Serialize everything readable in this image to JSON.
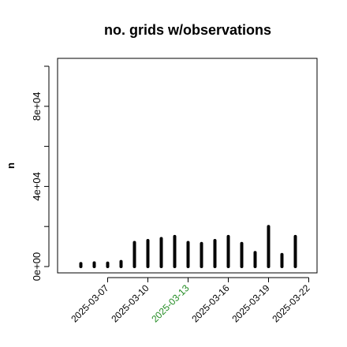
{
  "chart_data": {
    "type": "bar",
    "title": "no. grids w/observations",
    "xlabel": "",
    "ylabel": "n",
    "ylim": [
      0,
      100000
    ],
    "yticks": [
      0,
      40000,
      80000
    ],
    "ytick_labels": [
      "0e+00",
      "4e+04",
      "8e+04"
    ],
    "categories": [
      "2025-03-05",
      "2025-03-06",
      "2025-03-07",
      "2025-03-08",
      "2025-03-09",
      "2025-03-10",
      "2025-03-11",
      "2025-03-12",
      "2025-03-13",
      "2025-03-14",
      "2025-03-15",
      "2025-03-16",
      "2025-03-17",
      "2025-03-18",
      "2025-03-19",
      "2025-03-20",
      "2025-03-21",
      "2025-03-22"
    ],
    "values": [
      1500,
      1800,
      1700,
      2500,
      12000,
      13000,
      14000,
      15000,
      12000,
      11500,
      13000,
      15000,
      11500,
      7000,
      20000,
      6000,
      15000,
      0
    ],
    "xticks": [
      "2025-03-07",
      "2025-03-10",
      "2025-03-13",
      "2025-03-16",
      "2025-03-19",
      "2025-03-22"
    ],
    "highlight_tick": "2025-03-13",
    "colors": {
      "bar": "#000000",
      "axis": "#000000",
      "highlight": "#228B22"
    },
    "grid": false
  }
}
